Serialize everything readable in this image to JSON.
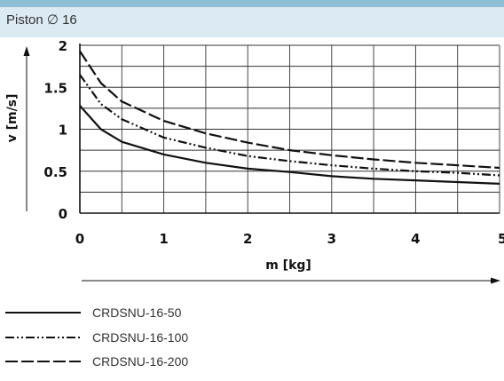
{
  "header": {
    "title": "Piston ∅ 16"
  },
  "chart_data": {
    "type": "line",
    "xlabel": "m [kg]",
    "ylabel": "v [m/s]",
    "xlim": [
      0,
      5
    ],
    "ylim": [
      0,
      2
    ],
    "x_ticks": [
      "0",
      "1",
      "2",
      "3",
      "4",
      "5"
    ],
    "y_ticks": [
      "0",
      "0.5",
      "1",
      "1.5",
      "2"
    ],
    "grid": true,
    "legend_position": "below",
    "series": [
      {
        "name": "CRDSNU-16-50",
        "style": "solid",
        "x": [
          0,
          0.25,
          0.5,
          1,
          1.5,
          2,
          2.5,
          3,
          3.5,
          4,
          4.5,
          5
        ],
        "y": [
          1.28,
          1.0,
          0.85,
          0.7,
          0.6,
          0.53,
          0.49,
          0.44,
          0.41,
          0.39,
          0.37,
          0.35
        ]
      },
      {
        "name": "CRDSNU-16-100",
        "style": "dash-dot-dot",
        "x": [
          0,
          0.25,
          0.5,
          1,
          1.5,
          2,
          2.5,
          3,
          3.5,
          4,
          4.5,
          5
        ],
        "y": [
          1.65,
          1.3,
          1.12,
          0.9,
          0.78,
          0.68,
          0.62,
          0.57,
          0.53,
          0.5,
          0.48,
          0.45
        ]
      },
      {
        "name": "CRDSNU-16-200",
        "style": "dashed",
        "x": [
          0,
          0.25,
          0.5,
          1,
          1.5,
          2,
          2.5,
          3,
          3.5,
          4,
          4.5,
          5
        ],
        "y": [
          1.93,
          1.55,
          1.33,
          1.1,
          0.95,
          0.84,
          0.75,
          0.69,
          0.64,
          0.6,
          0.57,
          0.54
        ]
      }
    ]
  }
}
